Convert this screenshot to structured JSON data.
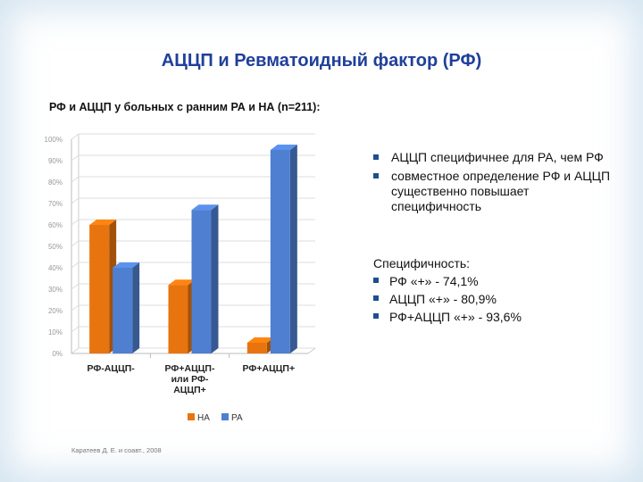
{
  "slide": {
    "title": "АЦЦП и Ревматоидный фактор (РФ)",
    "subtitle": "РФ и АЦЦП у больных с ранним РА и НА (n=211):",
    "footnote": "Каратеев Д. Е. и соавт., 2008"
  },
  "bullets": [
    "АЦЦП специфичнее для РА, чем РФ",
    "совместное определение РФ и АЦЦП существенно повышает специфичность"
  ],
  "specificity": {
    "heading": "Специфичность:",
    "items": [
      "РФ «+» - 74,1%",
      "АЦЦП «+» - 80,9%",
      "РФ+АЦЦП «+» - 93,6%"
    ]
  },
  "chart_data": {
    "type": "bar",
    "categories": [
      [
        "РФ-АЦЦП-"
      ],
      [
        "РФ+АЦЦП-",
        "или РФ-",
        "АЦЦП+"
      ],
      [
        "РФ+АЦЦП+"
      ]
    ],
    "series": [
      {
        "name": "НА",
        "values": [
          60,
          32,
          5
        ],
        "color": "#e8740f"
      },
      {
        "name": "РА",
        "values": [
          40,
          67,
          95
        ],
        "color": "#4f7fd0"
      }
    ],
    "yticks": [
      "0%",
      "10%",
      "20%",
      "30%",
      "40%",
      "50%",
      "60%",
      "70%",
      "80%",
      "90%",
      "100%"
    ],
    "ylim": [
      0,
      100
    ],
    "legend": "bottom",
    "grid": true,
    "style": "3d-bar"
  }
}
